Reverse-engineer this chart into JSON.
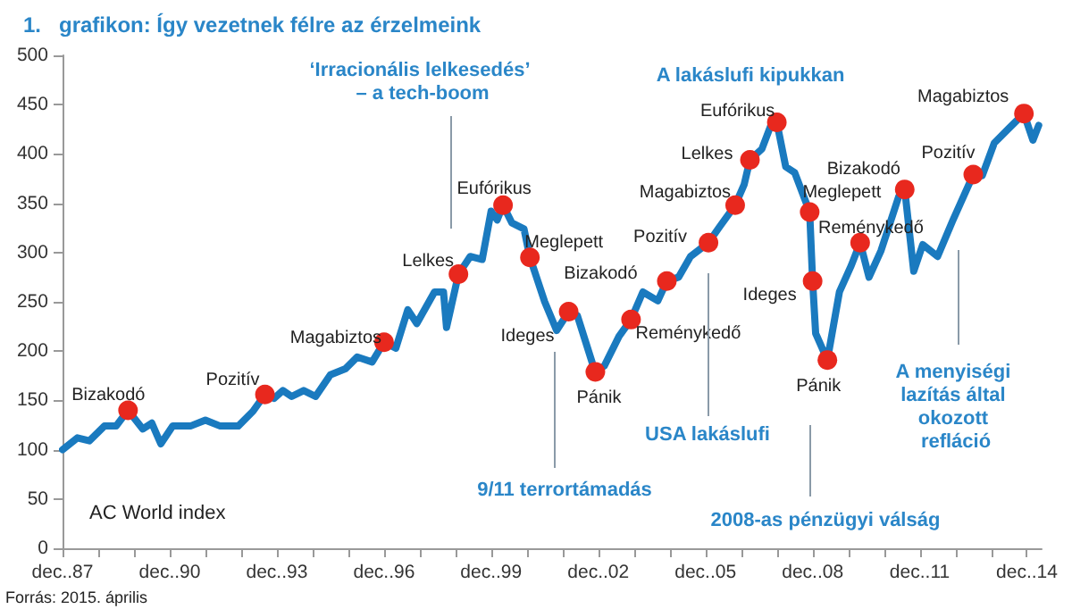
{
  "chart_data": {
    "type": "line",
    "title": "1.   grafikon: Így vezetnek félre az érzelmeink",
    "xlim": [
      "1987-12",
      "2015-05"
    ],
    "xticks": [
      {
        "value": "1987-12",
        "label": "dec..87"
      },
      {
        "value": "1988-12",
        "label": null
      },
      {
        "value": "1989-12",
        "label": null
      },
      {
        "value": "1990-12",
        "label": "dec..90"
      },
      {
        "value": "1991-12",
        "label": null
      },
      {
        "value": "1992-12",
        "label": null
      },
      {
        "value": "1993-12",
        "label": "dec..93"
      },
      {
        "value": "1994-12",
        "label": null
      },
      {
        "value": "1995-12",
        "label": null
      },
      {
        "value": "1996-12",
        "label": "dec..96"
      },
      {
        "value": "1997-12",
        "label": null
      },
      {
        "value": "1998-12",
        "label": null
      },
      {
        "value": "1999-12",
        "label": "dec..99"
      },
      {
        "value": "2000-12",
        "label": null
      },
      {
        "value": "2001-12",
        "label": null
      },
      {
        "value": "2002-12",
        "label": "dec..02"
      },
      {
        "value": "2003-12",
        "label": null
      },
      {
        "value": "2004-12",
        "label": null
      },
      {
        "value": "2005-12",
        "label": "dec..05"
      },
      {
        "value": "2006-12",
        "label": null
      },
      {
        "value": "2007-12",
        "label": null
      },
      {
        "value": "2008-12",
        "label": "dec..08"
      },
      {
        "value": "2009-12",
        "label": null
      },
      {
        "value": "2010-12",
        "label": null
      },
      {
        "value": "2011-12",
        "label": "dec..11"
      },
      {
        "value": "2012-12",
        "label": null
      },
      {
        "value": "2013-12",
        "label": null
      },
      {
        "value": "2014-12",
        "label": "dec..14"
      }
    ],
    "ylim": [
      0,
      500
    ],
    "yticks": [
      0,
      50,
      100,
      150,
      200,
      250,
      300,
      350,
      400,
      450,
      500
    ],
    "grid": false,
    "series": [
      {
        "color": "#1a7abf",
        "marker": "none",
        "line_style": "solid",
        "x": [
          "1987-12",
          "1988-05",
          "1988-09",
          "1989-02",
          "1989-06",
          "1989-10",
          "1990-03",
          "1990-06",
          "1990-09",
          "1991-01",
          "1991-07",
          "1991-12",
          "1992-05",
          "1992-11",
          "1993-04",
          "1993-08",
          "1993-11",
          "1994-02",
          "1994-05",
          "1994-09",
          "1995-01",
          "1995-06",
          "1995-11",
          "1996-03",
          "1996-08",
          "1996-12",
          "1997-04",
          "1997-08",
          "1997-11",
          "1998-05",
          "1998-08",
          "1998-09",
          "1999-01",
          "1999-05",
          "1999-09",
          "1999-12",
          "2000-02",
          "2000-04",
          "2000-07",
          "2000-11",
          "2001-01",
          "2001-06",
          "2001-10",
          "2002-02",
          "2002-05",
          "2002-10",
          "2002-11",
          "2003-02",
          "2003-07",
          "2003-11",
          "2004-03",
          "2004-08",
          "2004-11",
          "2005-03",
          "2005-07",
          "2006-01",
          "2006-05",
          "2006-10",
          "2007-01",
          "2007-03",
          "2007-07",
          "2007-10",
          "2007-12",
          "2008-03",
          "2008-06",
          "2008-11",
          "2008-12",
          "2009-01",
          "2009-05",
          "2009-09",
          "2010-01",
          "2010-04",
          "2010-07",
          "2010-11",
          "2011-05",
          "2011-07",
          "2011-10",
          "2012-01",
          "2012-06",
          "2012-11",
          "2013-06",
          "2013-09",
          "2014-01",
          "2014-06",
          "2014-11",
          "2015-02",
          "2015-04"
        ],
        "values": [
          100,
          112,
          109,
          124,
          124,
          140,
          121,
          127,
          106,
          124,
          124,
          130,
          124,
          124,
          139,
          156,
          152,
          160,
          154,
          160,
          154,
          176,
          182,
          194,
          189,
          209,
          203,
          242,
          228,
          260,
          260,
          224,
          278,
          296,
          293,
          342,
          333,
          348,
          330,
          324,
          295,
          250,
          221,
          240,
          236,
          188,
          179,
          185,
          215,
          232,
          260,
          251,
          271,
          275,
          296,
          310,
          327,
          348,
          369,
          394,
          405,
          429,
          432,
          387,
          381,
          341,
          271,
          218,
          191,
          260,
          287,
          310,
          275,
          302,
          357,
          364,
          281,
          308,
          296,
          332,
          379,
          378,
          411,
          426,
          441,
          414,
          429
        ]
      },
      {
        "type": "scatter",
        "color": "#e8281e",
        "marker": "circle",
        "x": [
          "1989-10",
          "1993-08",
          "1996-12",
          "1999-01",
          "2000-04",
          "2001-01",
          "2002-02",
          "2002-11",
          "2003-11",
          "2004-11",
          "2006-01",
          "2006-10",
          "2007-03",
          "2007-12",
          "2008-11",
          "2008-12",
          "2009-05",
          "2010-04",
          "2011-07",
          "2013-06",
          "2014-11"
        ],
        "values": [
          140,
          156,
          209,
          278,
          348,
          295,
          240,
          179,
          232,
          271,
          310,
          348,
          394,
          432,
          341,
          271,
          191,
          310,
          364,
          379,
          441
        ],
        "value_labels": [
          "Bizakodó",
          "Pozitív",
          "Magabiztos",
          "Lelkes",
          "Eufórikus",
          "Meglepett",
          "Ideges",
          "Pánik",
          "Reménykedő",
          "Bizakodó",
          "Pozitív",
          "Magabiztos",
          "Lelkes",
          "Eufórikus",
          "Meglepett",
          "Ideges",
          "Pánik",
          "Reménykedő",
          "Bizakodó",
          "Pozitív",
          "Magabiztos"
        ]
      }
    ],
    "annotations": [
      "‘Irracionális lelkesedés’ – a tech-boom",
      "9/11 terrortámadás",
      "A lakáslufi kipukkan",
      "USA lakáslufi",
      "2008-as pénzügyi válság",
      "A menyiségi lazítás által okozott refláció",
      "AC World index",
      "Forrás: 2015. április"
    ]
  }
}
